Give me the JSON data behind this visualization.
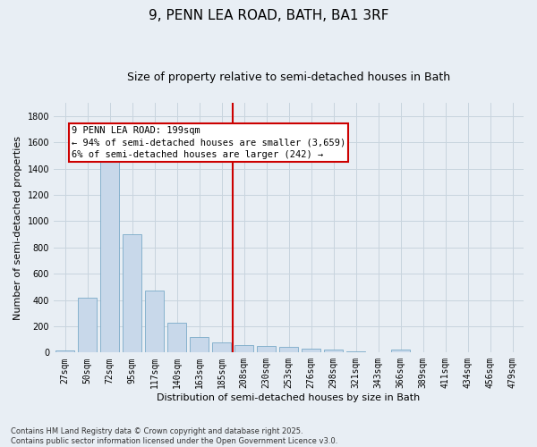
{
  "title": "9, PENN LEA ROAD, BATH, BA1 3RF",
  "subtitle": "Size of property relative to semi-detached houses in Bath",
  "bar_values": [
    15,
    420,
    1450,
    900,
    470,
    230,
    120,
    80,
    55,
    50,
    45,
    30,
    20,
    10,
    5,
    20,
    5,
    5,
    2,
    0,
    0
  ],
  "bar_labels": [
    "27sqm",
    "50sqm",
    "72sqm",
    "95sqm",
    "117sqm",
    "140sqm",
    "163sqm",
    "185sqm",
    "208sqm",
    "230sqm",
    "253sqm",
    "276sqm",
    "298sqm",
    "321sqm",
    "343sqm",
    "366sqm",
    "389sqm",
    "411sqm",
    "434sqm",
    "456sqm",
    "479sqm"
  ],
  "bar_color": "#c8d8ea",
  "bar_edge_color": "#7aaac8",
  "grid_color": "#c8d4de",
  "bg_color": "#e8eef4",
  "vline_color": "#cc0000",
  "annotation_text": "9 PENN LEA ROAD: 199sqm\n← 94% of semi-detached houses are smaller (3,659)\n6% of semi-detached houses are larger (242) →",
  "annotation_box_color": "#cc0000",
  "ylabel": "Number of semi-detached properties",
  "xlabel": "Distribution of semi-detached houses by size in Bath",
  "ylim": [
    0,
    1900
  ],
  "yticks": [
    0,
    200,
    400,
    600,
    800,
    1000,
    1200,
    1400,
    1600,
    1800
  ],
  "footnote1": "Contains HM Land Registry data © Crown copyright and database right 2025.",
  "footnote2": "Contains public sector information licensed under the Open Government Licence v3.0.",
  "title_fontsize": 11,
  "subtitle_fontsize": 9,
  "axis_label_fontsize": 8,
  "tick_fontsize": 7,
  "annotation_fontsize": 7.5
}
